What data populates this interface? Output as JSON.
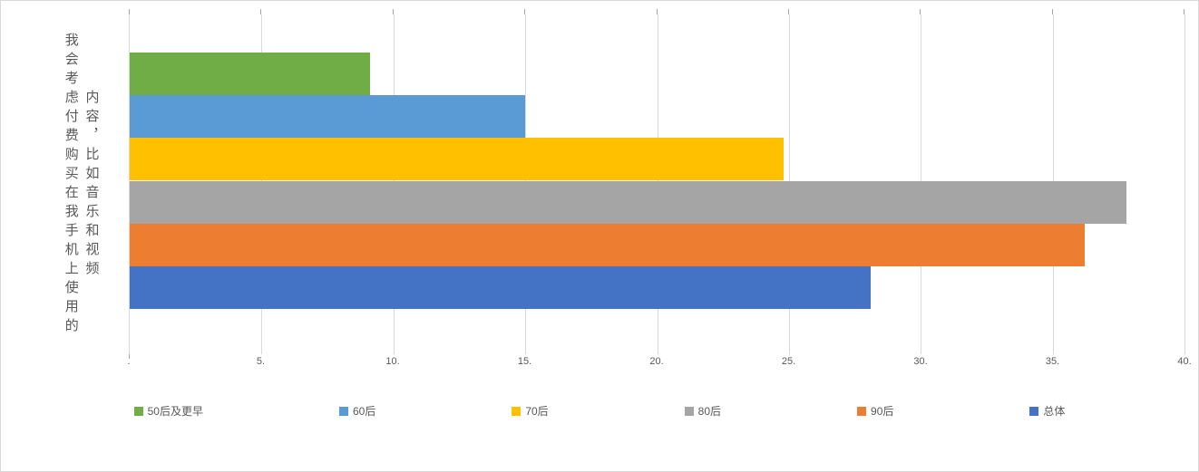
{
  "chart_data": {
    "type": "bar",
    "orientation": "horizontal",
    "axis_title": "我会考虑付费购买在我手机上使用的内容，比如音乐和视频",
    "axis_title_lines": [
      "我会考虑付费购买在我手机上使用的",
      "内容，比如音乐和视频"
    ],
    "series": [
      {
        "name": "50后及更早",
        "value": 9.1,
        "color": "#70AD47"
      },
      {
        "name": "60后",
        "value": 15.0,
        "color": "#5B9BD5"
      },
      {
        "name": "70后",
        "value": 24.8,
        "color": "#FFC000"
      },
      {
        "name": "80后",
        "value": 37.8,
        "color": "#A5A5A5"
      },
      {
        "name": "90后",
        "value": 36.2,
        "color": "#ED7D31"
      },
      {
        "name": "总体",
        "value": 28.1,
        "color": "#4472C4"
      }
    ],
    "xlim": [
      0,
      40
    ],
    "tick_interval": 5,
    "tick_labels": [
      ".",
      "5.",
      "10.",
      "15.",
      "20.",
      "25.",
      "30.",
      "35.",
      "40."
    ],
    "grid": true,
    "legend_position": "bottom",
    "colors": {
      "gridline": "#D9D9D9",
      "axis_text": "#595959"
    }
  }
}
